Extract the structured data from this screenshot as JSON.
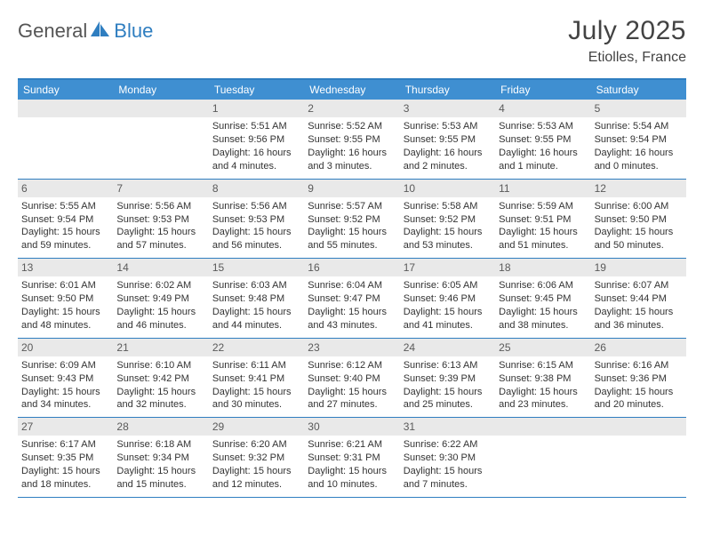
{
  "brand": {
    "part1": "General",
    "part2": "Blue"
  },
  "title": "July 2025",
  "location": "Etiolles, France",
  "colors": {
    "accent": "#2f7ec0",
    "header_bg": "#3f8fd1",
    "date_bg": "#e9e9e9",
    "text": "#333333"
  },
  "calendar": {
    "day_labels": [
      "Sunday",
      "Monday",
      "Tuesday",
      "Wednesday",
      "Thursday",
      "Friday",
      "Saturday"
    ],
    "weeks": [
      [
        null,
        null,
        {
          "n": "1",
          "sr": "Sunrise: 5:51 AM",
          "ss": "Sunset: 9:56 PM",
          "d1": "Daylight: 16 hours",
          "d2": "and 4 minutes."
        },
        {
          "n": "2",
          "sr": "Sunrise: 5:52 AM",
          "ss": "Sunset: 9:55 PM",
          "d1": "Daylight: 16 hours",
          "d2": "and 3 minutes."
        },
        {
          "n": "3",
          "sr": "Sunrise: 5:53 AM",
          "ss": "Sunset: 9:55 PM",
          "d1": "Daylight: 16 hours",
          "d2": "and 2 minutes."
        },
        {
          "n": "4",
          "sr": "Sunrise: 5:53 AM",
          "ss": "Sunset: 9:55 PM",
          "d1": "Daylight: 16 hours",
          "d2": "and 1 minute."
        },
        {
          "n": "5",
          "sr": "Sunrise: 5:54 AM",
          "ss": "Sunset: 9:54 PM",
          "d1": "Daylight: 16 hours",
          "d2": "and 0 minutes."
        }
      ],
      [
        {
          "n": "6",
          "sr": "Sunrise: 5:55 AM",
          "ss": "Sunset: 9:54 PM",
          "d1": "Daylight: 15 hours",
          "d2": "and 59 minutes."
        },
        {
          "n": "7",
          "sr": "Sunrise: 5:56 AM",
          "ss": "Sunset: 9:53 PM",
          "d1": "Daylight: 15 hours",
          "d2": "and 57 minutes."
        },
        {
          "n": "8",
          "sr": "Sunrise: 5:56 AM",
          "ss": "Sunset: 9:53 PM",
          "d1": "Daylight: 15 hours",
          "d2": "and 56 minutes."
        },
        {
          "n": "9",
          "sr": "Sunrise: 5:57 AM",
          "ss": "Sunset: 9:52 PM",
          "d1": "Daylight: 15 hours",
          "d2": "and 55 minutes."
        },
        {
          "n": "10",
          "sr": "Sunrise: 5:58 AM",
          "ss": "Sunset: 9:52 PM",
          "d1": "Daylight: 15 hours",
          "d2": "and 53 minutes."
        },
        {
          "n": "11",
          "sr": "Sunrise: 5:59 AM",
          "ss": "Sunset: 9:51 PM",
          "d1": "Daylight: 15 hours",
          "d2": "and 51 minutes."
        },
        {
          "n": "12",
          "sr": "Sunrise: 6:00 AM",
          "ss": "Sunset: 9:50 PM",
          "d1": "Daylight: 15 hours",
          "d2": "and 50 minutes."
        }
      ],
      [
        {
          "n": "13",
          "sr": "Sunrise: 6:01 AM",
          "ss": "Sunset: 9:50 PM",
          "d1": "Daylight: 15 hours",
          "d2": "and 48 minutes."
        },
        {
          "n": "14",
          "sr": "Sunrise: 6:02 AM",
          "ss": "Sunset: 9:49 PM",
          "d1": "Daylight: 15 hours",
          "d2": "and 46 minutes."
        },
        {
          "n": "15",
          "sr": "Sunrise: 6:03 AM",
          "ss": "Sunset: 9:48 PM",
          "d1": "Daylight: 15 hours",
          "d2": "and 44 minutes."
        },
        {
          "n": "16",
          "sr": "Sunrise: 6:04 AM",
          "ss": "Sunset: 9:47 PM",
          "d1": "Daylight: 15 hours",
          "d2": "and 43 minutes."
        },
        {
          "n": "17",
          "sr": "Sunrise: 6:05 AM",
          "ss": "Sunset: 9:46 PM",
          "d1": "Daylight: 15 hours",
          "d2": "and 41 minutes."
        },
        {
          "n": "18",
          "sr": "Sunrise: 6:06 AM",
          "ss": "Sunset: 9:45 PM",
          "d1": "Daylight: 15 hours",
          "d2": "and 38 minutes."
        },
        {
          "n": "19",
          "sr": "Sunrise: 6:07 AM",
          "ss": "Sunset: 9:44 PM",
          "d1": "Daylight: 15 hours",
          "d2": "and 36 minutes."
        }
      ],
      [
        {
          "n": "20",
          "sr": "Sunrise: 6:09 AM",
          "ss": "Sunset: 9:43 PM",
          "d1": "Daylight: 15 hours",
          "d2": "and 34 minutes."
        },
        {
          "n": "21",
          "sr": "Sunrise: 6:10 AM",
          "ss": "Sunset: 9:42 PM",
          "d1": "Daylight: 15 hours",
          "d2": "and 32 minutes."
        },
        {
          "n": "22",
          "sr": "Sunrise: 6:11 AM",
          "ss": "Sunset: 9:41 PM",
          "d1": "Daylight: 15 hours",
          "d2": "and 30 minutes."
        },
        {
          "n": "23",
          "sr": "Sunrise: 6:12 AM",
          "ss": "Sunset: 9:40 PM",
          "d1": "Daylight: 15 hours",
          "d2": "and 27 minutes."
        },
        {
          "n": "24",
          "sr": "Sunrise: 6:13 AM",
          "ss": "Sunset: 9:39 PM",
          "d1": "Daylight: 15 hours",
          "d2": "and 25 minutes."
        },
        {
          "n": "25",
          "sr": "Sunrise: 6:15 AM",
          "ss": "Sunset: 9:38 PM",
          "d1": "Daylight: 15 hours",
          "d2": "and 23 minutes."
        },
        {
          "n": "26",
          "sr": "Sunrise: 6:16 AM",
          "ss": "Sunset: 9:36 PM",
          "d1": "Daylight: 15 hours",
          "d2": "and 20 minutes."
        }
      ],
      [
        {
          "n": "27",
          "sr": "Sunrise: 6:17 AM",
          "ss": "Sunset: 9:35 PM",
          "d1": "Daylight: 15 hours",
          "d2": "and 18 minutes."
        },
        {
          "n": "28",
          "sr": "Sunrise: 6:18 AM",
          "ss": "Sunset: 9:34 PM",
          "d1": "Daylight: 15 hours",
          "d2": "and 15 minutes."
        },
        {
          "n": "29",
          "sr": "Sunrise: 6:20 AM",
          "ss": "Sunset: 9:32 PM",
          "d1": "Daylight: 15 hours",
          "d2": "and 12 minutes."
        },
        {
          "n": "30",
          "sr": "Sunrise: 6:21 AM",
          "ss": "Sunset: 9:31 PM",
          "d1": "Daylight: 15 hours",
          "d2": "and 10 minutes."
        },
        {
          "n": "31",
          "sr": "Sunrise: 6:22 AM",
          "ss": "Sunset: 9:30 PM",
          "d1": "Daylight: 15 hours",
          "d2": "and 7 minutes."
        },
        null,
        null
      ]
    ]
  }
}
